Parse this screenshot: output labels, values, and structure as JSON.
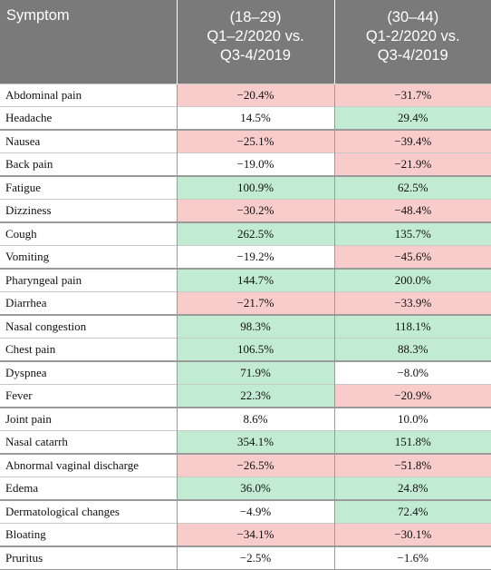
{
  "columns": {
    "symptom": "Symptom",
    "age1": [
      "(18–29)",
      "Q1–2/2020 vs.",
      "Q3-4/2019"
    ],
    "age2": [
      "(30–44)",
      "Q1-2/2020 vs.",
      "Q3-4/2019"
    ]
  },
  "colors": {
    "positive": "#c2ecd1",
    "negative": "#f9cccc",
    "neutral": "#ffffff",
    "header": "#7a7a7a"
  },
  "rows": [
    {
      "symptom": "Abdominal pain",
      "v1": "−20.4%",
      "c1": "neg",
      "v2": "−31.7%",
      "c2": "neg"
    },
    {
      "symptom": "Headache",
      "v1": "14.5%",
      "c1": "neu",
      "v2": "29.4%",
      "c2": "pos"
    },
    {
      "symptom": "Nausea",
      "v1": "−25.1%",
      "c1": "neg",
      "v2": "−39.4%",
      "c2": "neg"
    },
    {
      "symptom": "Back pain",
      "v1": "−19.0%",
      "c1": "neu",
      "v2": "−21.9%",
      "c2": "neg"
    },
    {
      "symptom": "Fatigue",
      "v1": "100.9%",
      "c1": "pos",
      "v2": "62.5%",
      "c2": "pos"
    },
    {
      "symptom": "Dizziness",
      "v1": "−30.2%",
      "c1": "neg",
      "v2": "−48.4%",
      "c2": "neg"
    },
    {
      "symptom": "Cough",
      "v1": "262.5%",
      "c1": "pos",
      "v2": "135.7%",
      "c2": "pos"
    },
    {
      "symptom": "Vomiting",
      "v1": "−19.2%",
      "c1": "neu",
      "v2": "−45.6%",
      "c2": "neg"
    },
    {
      "symptom": "Pharyngeal pain",
      "v1": "144.7%",
      "c1": "pos",
      "v2": "200.0%",
      "c2": "pos"
    },
    {
      "symptom": "Diarrhea",
      "v1": "−21.7%",
      "c1": "neg",
      "v2": "−33.9%",
      "c2": "neg"
    },
    {
      "symptom": "Nasal congestion",
      "v1": "98.3%",
      "c1": "pos",
      "v2": "118.1%",
      "c2": "pos"
    },
    {
      "symptom": "Chest pain",
      "v1": "106.5%",
      "c1": "pos",
      "v2": "88.3%",
      "c2": "pos"
    },
    {
      "symptom": "Dyspnea",
      "v1": "71.9%",
      "c1": "pos",
      "v2": "−8.0%",
      "c2": "neu"
    },
    {
      "symptom": "Fever",
      "v1": "22.3%",
      "c1": "pos",
      "v2": "−20.9%",
      "c2": "neg"
    },
    {
      "symptom": "Joint pain",
      "v1": "8.6%",
      "c1": "neu",
      "v2": "10.0%",
      "c2": "neu"
    },
    {
      "symptom": "Nasal catarrh",
      "v1": "354.1%",
      "c1": "pos",
      "v2": "151.8%",
      "c2": "pos"
    },
    {
      "symptom": "Abnormal vaginal discharge",
      "v1": "−26.5%",
      "c1": "neg",
      "v2": "−51.8%",
      "c2": "neg"
    },
    {
      "symptom": "Edema",
      "v1": "36.0%",
      "c1": "pos",
      "v2": "24.8%",
      "c2": "pos"
    },
    {
      "symptom": "Dermatological changes",
      "v1": "−4.9%",
      "c1": "neu",
      "v2": "72.4%",
      "c2": "pos"
    },
    {
      "symptom": "Bloating",
      "v1": "−34.1%",
      "c1": "neg",
      "v2": "−30.1%",
      "c2": "neg"
    },
    {
      "symptom": "Pruritus",
      "v1": "−2.5%",
      "c1": "neu",
      "v2": "−1.6%",
      "c2": "neu"
    }
  ]
}
